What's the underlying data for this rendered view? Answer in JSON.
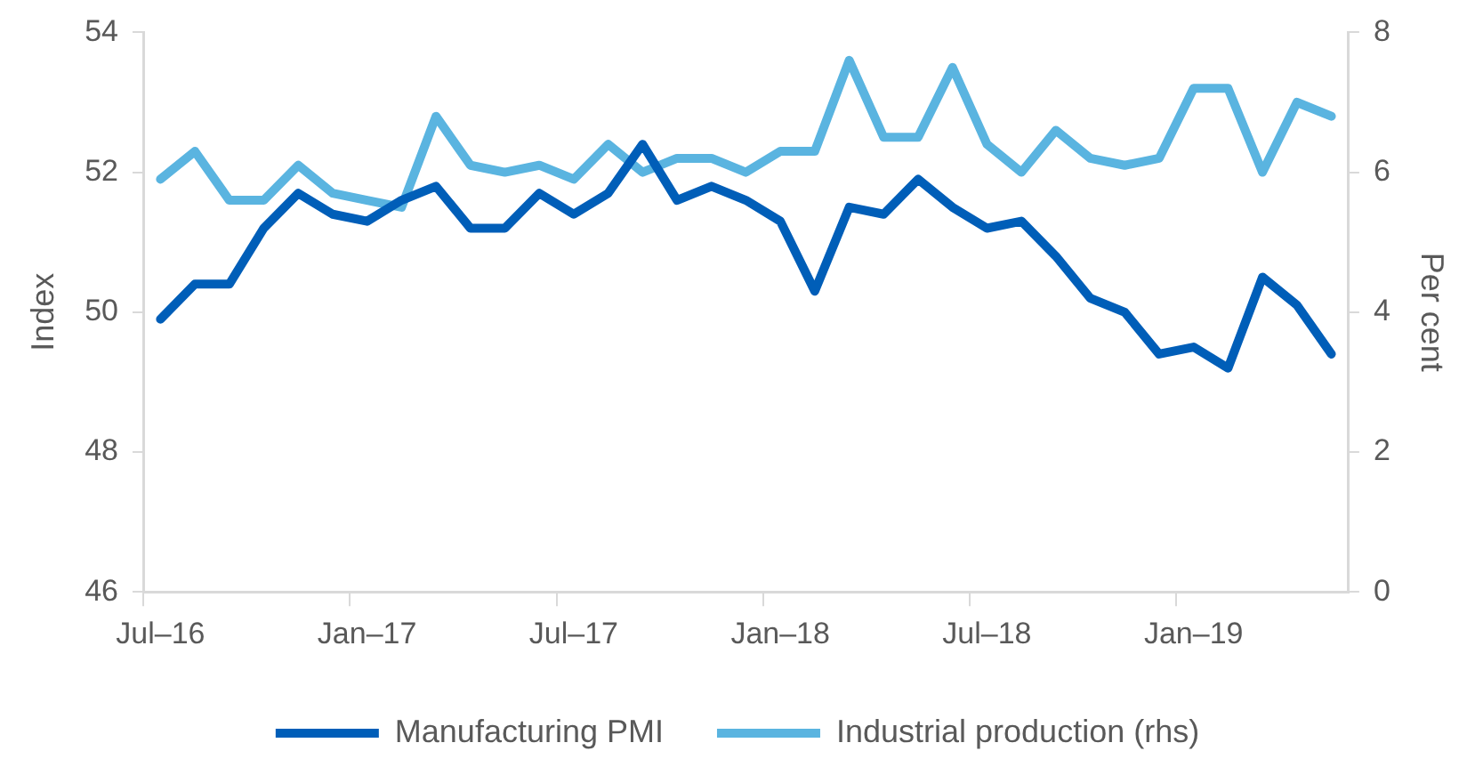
{
  "chart_data": {
    "type": "line",
    "ylabel": "Index",
    "y2label": "Per cent",
    "categories": [
      "Jul–16",
      null,
      null,
      null,
      null,
      null,
      "Jan–17",
      null,
      null,
      null,
      null,
      null,
      "Jul–17",
      null,
      null,
      null,
      null,
      null,
      "Jan–18",
      null,
      null,
      null,
      null,
      null,
      "Jul–18",
      null,
      null,
      null,
      null,
      null,
      "Jan–19",
      null,
      null,
      null,
      null
    ],
    "series": [
      {
        "name": "Manufacturing PMI",
        "color": "#005eb8",
        "values": [
          49.9,
          50.4,
          50.4,
          51.2,
          51.7,
          51.4,
          51.3,
          51.6,
          51.8,
          51.2,
          51.2,
          51.7,
          51.4,
          51.7,
          52.4,
          51.6,
          51.8,
          51.6,
          51.3,
          50.3,
          51.5,
          51.4,
          51.9,
          51.5,
          51.2,
          51.3,
          50.8,
          50.2,
          50.0,
          49.4,
          49.5,
          49.2,
          50.5,
          50.1,
          49.4
        ]
      },
      {
        "name": "Industrial production (rhs)",
        "color": "#5ab4e0",
        "axis": "y2",
        "values": [
          5.9,
          6.3,
          5.6,
          5.6,
          6.1,
          5.7,
          5.6,
          5.5,
          6.8,
          6.1,
          6.0,
          6.1,
          5.9,
          6.4,
          6.0,
          6.2,
          6.2,
          6.0,
          6.3,
          6.3,
          7.6,
          6.5,
          6.5,
          7.5,
          6.4,
          6.0,
          6.6,
          6.2,
          6.1,
          6.2,
          7.2,
          7.2,
          6.0,
          7.0,
          6.8
        ]
      }
    ],
    "ylim": [
      46,
      54
    ],
    "yticks": [
      46,
      48,
      50,
      52,
      54
    ],
    "y2lim": [
      0,
      8
    ],
    "y2ticks": [
      0,
      2,
      4,
      6,
      8
    ],
    "grid": false,
    "legend": "bottom",
    "marker": "none",
    "line_style": "solid"
  }
}
